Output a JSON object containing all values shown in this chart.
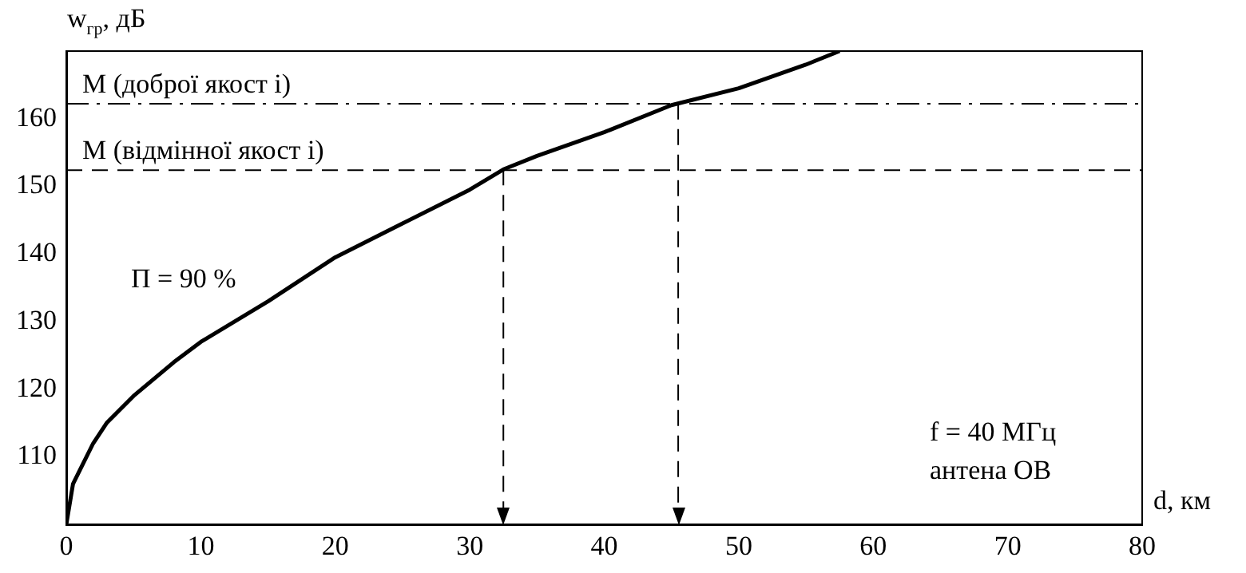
{
  "chart_data": {
    "type": "line",
    "xlabel": "d, км",
    "ylabel": "w$_{гр}$, дБ",
    "x": [
      0,
      0.5,
      1,
      2,
      3,
      5,
      8,
      10,
      15,
      20,
      25,
      30,
      32.5,
      35,
      40,
      45,
      50,
      55,
      57.5
    ],
    "series": [
      {
        "color": "#000000",
        "values": [
          100,
          106,
          108,
          112,
          115,
          119,
          124,
          127,
          133,
          139.5,
          144.5,
          149.5,
          152.5,
          154.5,
          158,
          162,
          164.5,
          168,
          170
        ]
      }
    ],
    "xlim": [
      0,
      80
    ],
    "xticks": [
      0,
      10,
      20,
      30,
      40,
      50,
      60,
      70,
      80
    ],
    "ylim": [
      100,
      170
    ],
    "yticks": [
      110,
      120,
      130,
      140,
      150,
      160
    ],
    "grid": false,
    "legend": false,
    "marker": "none",
    "line_style": "solid",
    "ref_lines": [
      {
        "axis": "y",
        "value": 162.2,
        "label": "М (доброї якост і)",
        "line_style": "dashdot",
        "color": "#000000"
      },
      {
        "axis": "y",
        "value": 152.4,
        "label": "М (відмінної якост і)",
        "line_style": "dashed",
        "color": "#000000"
      },
      {
        "axis": "x",
        "value": 32.5,
        "label": null,
        "line_style": "dashed",
        "color": "#000000"
      },
      {
        "axis": "x",
        "value": 45.5,
        "label": null,
        "line_style": "dashed",
        "color": "#000000"
      }
    ],
    "annotations": [
      "П = 90 %",
      "f = 40 МГц",
      "антена ОВ"
    ]
  }
}
